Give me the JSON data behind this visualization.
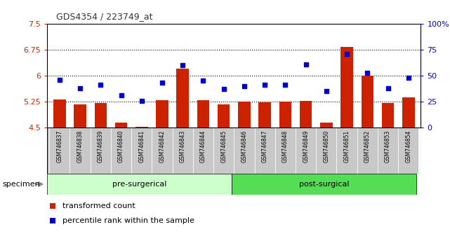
{
  "title": "GDS4354 / 223749_at",
  "samples": [
    "GSM746837",
    "GSM746838",
    "GSM746839",
    "GSM746840",
    "GSM746841",
    "GSM746842",
    "GSM746843",
    "GSM746844",
    "GSM746845",
    "GSM746846",
    "GSM746847",
    "GSM746848",
    "GSM746849",
    "GSM746850",
    "GSM746851",
    "GSM746852",
    "GSM746853",
    "GSM746854"
  ],
  "bar_values": [
    5.32,
    5.18,
    5.21,
    4.65,
    4.52,
    5.3,
    6.2,
    5.3,
    5.18,
    5.25,
    5.23,
    5.25,
    5.27,
    4.65,
    6.82,
    6.0,
    5.22,
    5.38
  ],
  "percentile_values": [
    46,
    38,
    41,
    31,
    26,
    43,
    60,
    45,
    37,
    40,
    41,
    41,
    61,
    35,
    71,
    53,
    38,
    48
  ],
  "ylim_left": [
    4.5,
    7.5
  ],
  "ylim_right": [
    0,
    100
  ],
  "yticks_left": [
    4.5,
    5.25,
    6.0,
    6.75,
    7.5
  ],
  "yticks_right": [
    0,
    25,
    50,
    75,
    100
  ],
  "ytick_labels_left": [
    "4.5",
    "5.25",
    "6",
    "6.75",
    "7.5"
  ],
  "ytick_labels_right": [
    "0",
    "25",
    "50",
    "75",
    "100%"
  ],
  "grid_lines": [
    5.25,
    6.0,
    6.75
  ],
  "bar_color": "#cc2200",
  "square_color": "#0000cc",
  "pre_surgical_count": 9,
  "post_surgical_count": 9,
  "pre_label": "pre-surgerical",
  "post_label": "post-surgical",
  "specimen_label": "specimen",
  "legend_bar": "transformed count",
  "legend_square": "percentile rank within the sample",
  "bg_tick": "#c8c8c8",
  "bg_pre": "#ccffcc",
  "bg_post": "#55dd55",
  "title_color": "#333333",
  "left_axis_color": "#cc2200",
  "right_axis_color": "#0000cc"
}
